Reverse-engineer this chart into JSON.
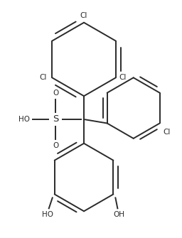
{
  "bg_color": "#ffffff",
  "line_color": "#2a2a2a",
  "lw": 1.4,
  "font_size": 7.5,
  "figsize": [
    2.56,
    3.35
  ],
  "dpi": 100,
  "xlim": [
    0,
    256
  ],
  "ylim": [
    0,
    335
  ]
}
